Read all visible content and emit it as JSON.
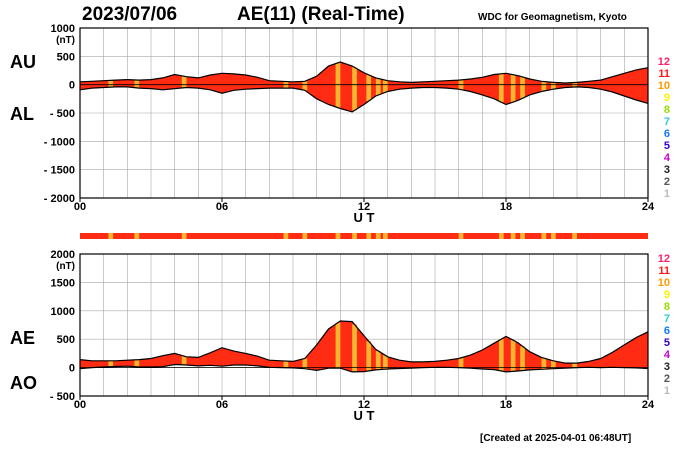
{
  "header": {
    "date": "2023/07/06",
    "title": "AE(11) (Real-Time)",
    "organization": "WDC for Geomagnetism, Kyoto",
    "created": "[Created at 2025-04-01 06:48UT]"
  },
  "colors": {
    "fill": "#ff2b12",
    "outline": "#000000",
    "station_highlight": "#f5b531",
    "grid": "#a8a8a8",
    "legend": [
      "#ff1f6e",
      "#ff1a1a",
      "#ff9900",
      "#ffee00",
      "#99dd00",
      "#33cccc",
      "#1177ff",
      "#3300cc",
      "#cc00cc",
      "#222222",
      "#555555",
      "#bbbbbb"
    ]
  },
  "legend": {
    "station_counts": [
      "12",
      "11",
      "10",
      "9",
      "8",
      "7",
      "6",
      "5",
      "4",
      "3",
      "2",
      "1"
    ]
  },
  "chart_data": [
    {
      "type": "area",
      "series_labels": [
        "AU",
        "AL"
      ],
      "yunit": "(nT)",
      "ylim": [
        -2000,
        1000
      ],
      "yticks": [
        "1000",
        "500",
        "0",
        "- 500",
        "- 1000",
        "- 1500",
        "- 2000"
      ],
      "xticks": [
        "00",
        "06",
        "12",
        "18",
        "24"
      ],
      "xlabel": "U T",
      "xlim": [
        0,
        24
      ],
      "grid": true,
      "x": [
        0,
        0.5,
        1,
        1.5,
        2,
        2.5,
        3,
        3.5,
        4,
        4.5,
        5,
        5.5,
        6,
        6.5,
        7,
        7.5,
        8,
        8.5,
        9,
        9.5,
        10,
        10.5,
        11,
        11.5,
        12,
        12.5,
        13,
        13.5,
        14,
        14.5,
        15,
        15.5,
        16,
        16.5,
        17,
        17.5,
        18,
        18.5,
        19,
        19.5,
        20,
        20.5,
        21,
        21.5,
        22,
        22.5,
        23,
        23.5,
        24
      ],
      "series": [
        {
          "name": "AU",
          "values": [
            50,
            60,
            70,
            80,
            90,
            80,
            90,
            120,
            180,
            140,
            120,
            170,
            200,
            190,
            170,
            130,
            70,
            60,
            50,
            60,
            150,
            330,
            400,
            330,
            210,
            120,
            70,
            50,
            40,
            50,
            60,
            70,
            80,
            100,
            130,
            180,
            200,
            160,
            100,
            60,
            40,
            30,
            40,
            60,
            80,
            140,
            200,
            260,
            300
          ]
        },
        {
          "name": "AL",
          "values": [
            -90,
            -60,
            -50,
            -40,
            -40,
            -60,
            -70,
            -90,
            -70,
            -50,
            -60,
            -90,
            -150,
            -100,
            -80,
            -70,
            -60,
            -60,
            -60,
            -100,
            -250,
            -350,
            -420,
            -480,
            -350,
            -200,
            -120,
            -80,
            -60,
            -50,
            -50,
            -60,
            -80,
            -120,
            -180,
            -250,
            -350,
            -280,
            -180,
            -120,
            -80,
            -50,
            -40,
            -50,
            -80,
            -130,
            -200,
            -270,
            -330
          ]
        }
      ]
    },
    {
      "type": "area",
      "series_labels": [
        "AE",
        "AO"
      ],
      "yunit": "(nT)",
      "ylim": [
        -500,
        2000
      ],
      "yticks": [
        "2000",
        "1500",
        "1000",
        "500",
        "0",
        "- 500"
      ],
      "xticks": [
        "00",
        "06",
        "12",
        "18",
        "24"
      ],
      "xlabel": "U T",
      "xlim": [
        0,
        24
      ],
      "grid": true,
      "x": [
        0,
        0.5,
        1,
        1.5,
        2,
        2.5,
        3,
        3.5,
        4,
        4.5,
        5,
        5.5,
        6,
        6.5,
        7,
        7.5,
        8,
        8.5,
        9,
        9.5,
        10,
        10.5,
        11,
        11.5,
        12,
        12.5,
        13,
        13.5,
        14,
        14.5,
        15,
        15.5,
        16,
        16.5,
        17,
        17.5,
        18,
        18.5,
        19,
        19.5,
        20,
        20.5,
        21,
        21.5,
        22,
        22.5,
        23,
        23.5,
        24
      ],
      "series": [
        {
          "name": "AE",
          "values": [
            140,
            120,
            120,
            120,
            130,
            140,
            160,
            210,
            250,
            190,
            180,
            260,
            350,
            290,
            250,
            200,
            130,
            120,
            110,
            160,
            400,
            680,
            820,
            810,
            560,
            320,
            190,
            130,
            100,
            100,
            110,
            130,
            160,
            220,
            310,
            430,
            550,
            440,
            280,
            180,
            120,
            80,
            80,
            110,
            160,
            270,
            400,
            530,
            630
          ]
        },
        {
          "name": "AO",
          "values": [
            -20,
            0,
            10,
            20,
            25,
            10,
            10,
            15,
            55,
            45,
            30,
            40,
            25,
            45,
            45,
            30,
            5,
            0,
            -5,
            -20,
            -50,
            -10,
            -10,
            -75,
            -70,
            -40,
            -25,
            -15,
            -10,
            0,
            5,
            5,
            0,
            -10,
            -25,
            -35,
            -75,
            -60,
            -40,
            -30,
            -20,
            -10,
            0,
            5,
            0,
            5,
            0,
            -5,
            -15
          ]
        }
      ]
    }
  ],
  "station_bar": {
    "highlight_ranges_ut": [
      [
        1.2,
        1.4
      ],
      [
        2.3,
        2.5
      ],
      [
        4.3,
        4.5
      ],
      [
        8.6,
        8.8
      ],
      [
        9.4,
        9.6
      ],
      [
        10.8,
        11.0
      ],
      [
        11.5,
        11.7
      ],
      [
        12.1,
        12.3
      ],
      [
        12.5,
        12.7
      ],
      [
        12.8,
        13.0
      ],
      [
        16.0,
        16.2
      ],
      [
        17.7,
        17.9
      ],
      [
        18.2,
        18.4
      ],
      [
        18.6,
        18.8
      ],
      [
        19.5,
        19.7
      ],
      [
        19.9,
        20.1
      ],
      [
        20.8,
        21.0
      ]
    ]
  }
}
